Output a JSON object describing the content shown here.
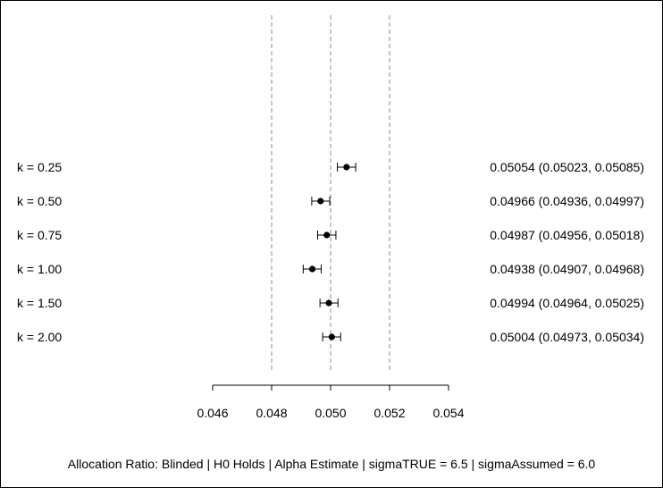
{
  "chart_data": {
    "type": "forest",
    "x_axis": {
      "ticks": [
        0.046,
        0.048,
        0.05,
        0.052,
        0.054
      ],
      "tick_labels": [
        "0.046",
        "0.048",
        "0.050",
        "0.052",
        "0.054"
      ],
      "xlim": [
        0.046,
        0.054
      ]
    },
    "reference_lines": [
      0.048,
      0.05,
      0.052
    ],
    "reference_line_style": "dashed",
    "rows": [
      {
        "label": "k = 0.25",
        "estimate": 0.05054,
        "lower": 0.05023,
        "upper": 0.05085,
        "ci_text": "0.05054 (0.05023, 0.05085)"
      },
      {
        "label": "k = 0.50",
        "estimate": 0.04966,
        "lower": 0.04936,
        "upper": 0.04997,
        "ci_text": "0.04966 (0.04936, 0.04997)"
      },
      {
        "label": "k = 0.75",
        "estimate": 0.04987,
        "lower": 0.04956,
        "upper": 0.05018,
        "ci_text": "0.04987 (0.04956, 0.05018)"
      },
      {
        "label": "k = 1.00",
        "estimate": 0.04938,
        "lower": 0.04907,
        "upper": 0.04968,
        "ci_text": "0.04938 (0.04907, 0.04968)"
      },
      {
        "label": "k = 1.50",
        "estimate": 0.04994,
        "lower": 0.04964,
        "upper": 0.05025,
        "ci_text": "0.04994 (0.04964, 0.05025)"
      },
      {
        "label": "k = 2.00",
        "estimate": 0.05004,
        "lower": 0.04973,
        "upper": 0.05034,
        "ci_text": "0.05004 (0.04973, 0.05034)"
      }
    ],
    "caption": "Allocation Ratio: Blinded | H0 Holds | Alpha Estimate | sigmaTRUE = 6.5 | sigmaAssumed = 6.0",
    "grid": false,
    "colors": {
      "points": "#000000",
      "reference_lines": "#8c8c8c"
    }
  }
}
